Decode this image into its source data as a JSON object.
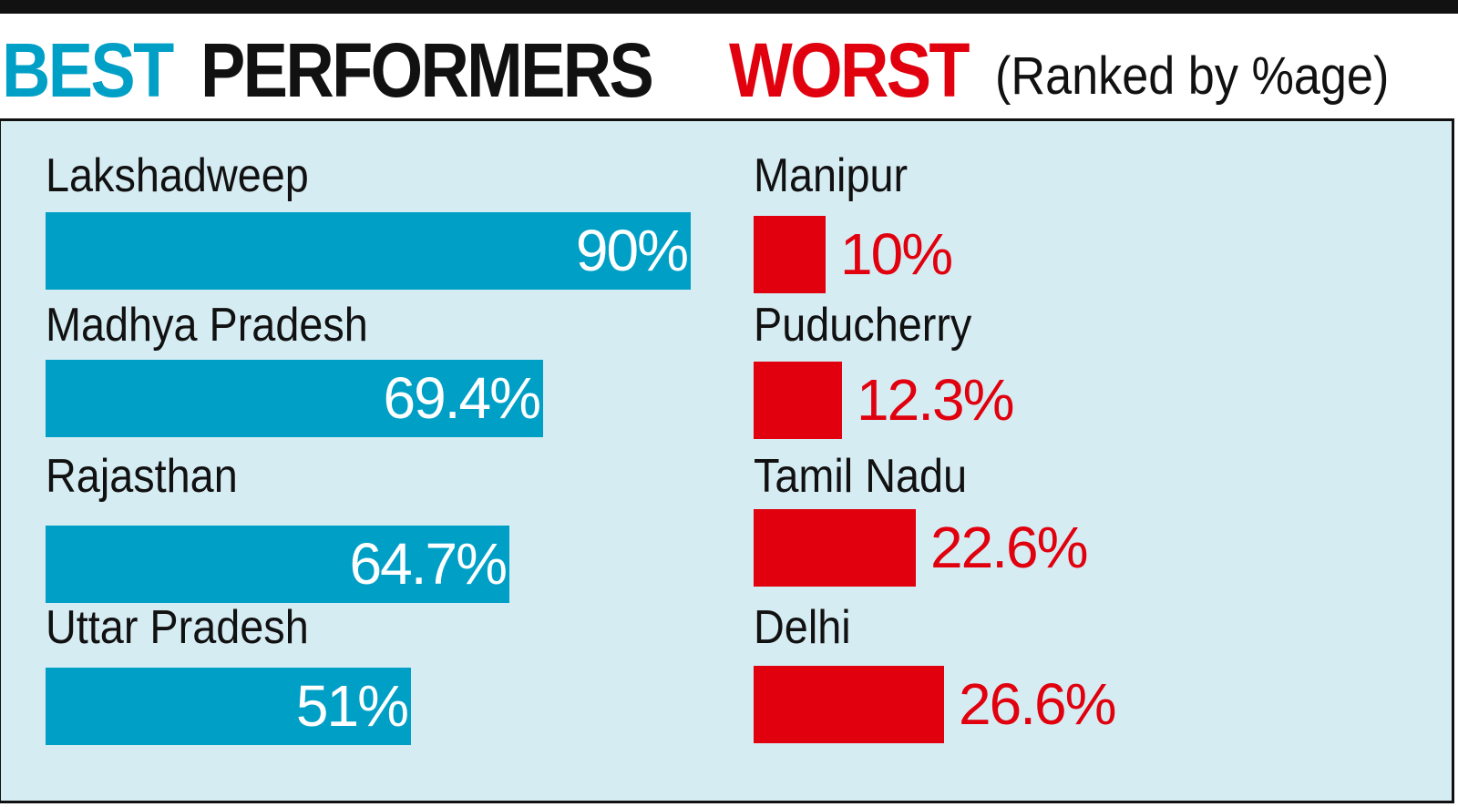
{
  "header": {
    "best": "BEST",
    "performers": "PERFORMERS",
    "worst": "WORST",
    "note": "(Ranked by %age)"
  },
  "colors": {
    "best_accent": "#00a0c6",
    "worst_accent": "#e0000e",
    "panel_background": "#d6ecf3",
    "text": "#111111"
  },
  "chart_data": [
    {
      "type": "bar",
      "orientation": "horizontal",
      "title": "BEST PERFORMERS",
      "categories": [
        "Lakshadweep",
        "Madhya Pradesh",
        "Rajasthan",
        "Uttar Pradesh"
      ],
      "values": [
        90,
        69.4,
        64.7,
        51
      ],
      "value_labels": [
        "90%",
        "69.4%",
        "64.7%",
        "51%"
      ],
      "unit": "%",
      "xlim": [
        0,
        90
      ],
      "color": "#00a0c6",
      "grid": false,
      "legend": false
    },
    {
      "type": "bar",
      "orientation": "horizontal",
      "title": "WORST",
      "categories": [
        "Manipur",
        "Puducherry",
        "Tamil Nadu",
        "Delhi"
      ],
      "values": [
        10,
        12.3,
        22.6,
        26.6
      ],
      "value_labels": [
        "10%",
        "12.3%",
        "22.6%",
        "26.6%"
      ],
      "unit": "%",
      "xlim": [
        0,
        90
      ],
      "color": "#e0000e",
      "grid": false,
      "legend": false
    }
  ]
}
